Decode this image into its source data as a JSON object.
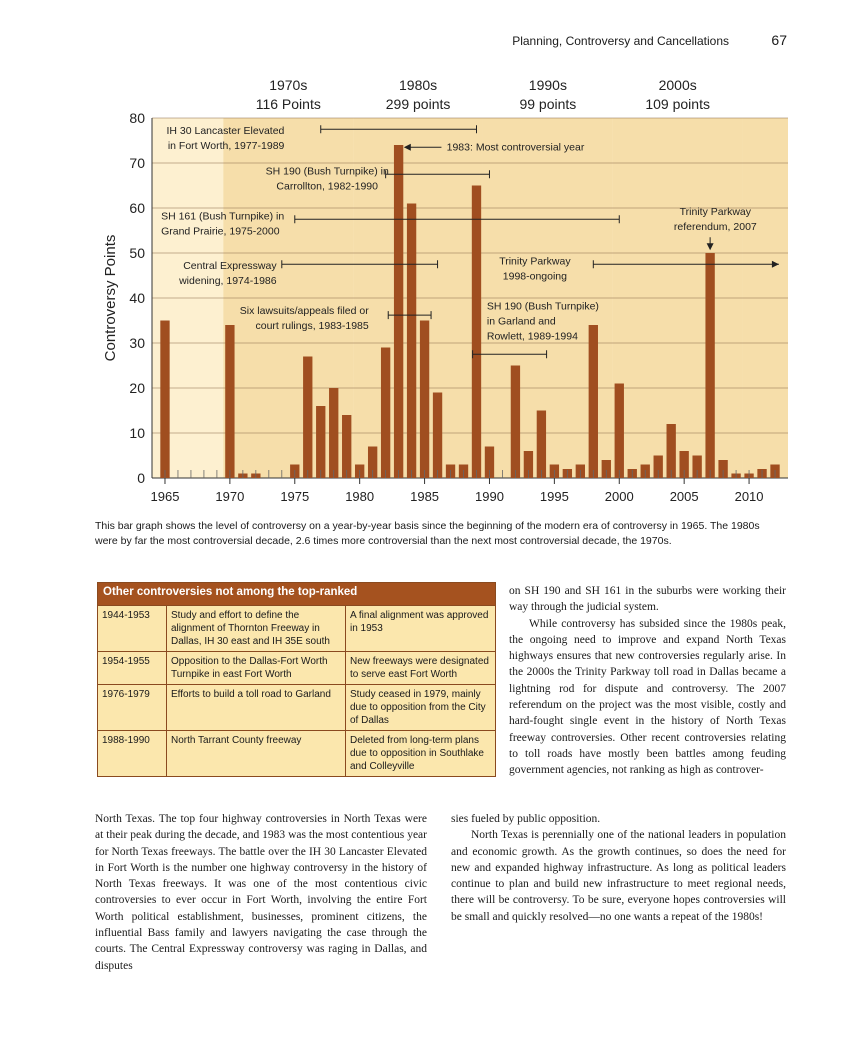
{
  "header": {
    "title": "Planning, Controversy and Cancellations",
    "page_number": "67"
  },
  "chart_data": {
    "type": "bar",
    "ylabel": "Controversy Points",
    "ylim": [
      0,
      80
    ],
    "yticks": [
      0,
      10,
      20,
      30,
      40,
      50,
      60,
      70,
      80
    ],
    "xlim": [
      1964,
      2013
    ],
    "xticks": [
      1965,
      1970,
      1975,
      1980,
      1985,
      1990,
      1995,
      2000,
      2005,
      2010
    ],
    "years": [
      1965,
      1966,
      1967,
      1968,
      1969,
      1970,
      1971,
      1972,
      1973,
      1974,
      1975,
      1976,
      1977,
      1978,
      1979,
      1980,
      1981,
      1982,
      1983,
      1984,
      1985,
      1986,
      1987,
      1988,
      1989,
      1990,
      1991,
      1992,
      1993,
      1994,
      1995,
      1996,
      1997,
      1998,
      1999,
      2000,
      2001,
      2002,
      2003,
      2004,
      2005,
      2006,
      2007,
      2008,
      2009,
      2010,
      2011,
      2012
    ],
    "values": [
      35,
      0,
      0,
      0,
      0,
      34,
      1,
      1,
      0,
      0,
      3,
      27,
      16,
      20,
      14,
      3,
      7,
      29,
      74,
      61,
      35,
      19,
      3,
      3,
      65,
      7,
      0,
      25,
      6,
      15,
      3,
      2,
      3,
      34,
      4,
      21,
      2,
      3,
      5,
      12,
      6,
      5,
      50,
      4,
      1,
      1,
      2,
      3
    ],
    "decades": [
      {
        "label": "1970s",
        "points": "116 Points",
        "start": 1969.5,
        "end": 1979.5
      },
      {
        "label": "1980s",
        "points": "299 points",
        "start": 1979.5,
        "end": 1989.5
      },
      {
        "label": "1990s",
        "points": "99 points",
        "start": 1989.5,
        "end": 1999.5
      },
      {
        "label": "2000s",
        "points": "109 points",
        "start": 1999.5,
        "end": 2009.5
      }
    ],
    "colors": {
      "bar": "#a04e20",
      "band_light": "#fdf0d0",
      "band_dark": "#f6deaa",
      "grid": "#8a6a4a",
      "text": "#222222"
    },
    "annotations": [
      {
        "lines": [
          "IH 30 Lancaster Elevated",
          "in Fort Worth, 1977-1989"
        ],
        "align": "end",
        "tx": 1974.2,
        "ty": 76.5,
        "range": [
          1977,
          1989
        ],
        "ry": 77.5
      },
      {
        "lines": [
          "1983: Most controversial year"
        ],
        "align": "start",
        "tx": 1986.7,
        "ty": 72.8,
        "arrow_left_to": 1983.4,
        "arrow_from": 1986.3,
        "ay": 73.5
      },
      {
        "lines": [
          "SH 190 (Bush Turnpike) in",
          "Carrollton, 1982-1990"
        ],
        "align": "middle",
        "tx": 1977.5,
        "ty": 67.5,
        "range": [
          1982,
          1990
        ],
        "ry": 67.5
      },
      {
        "lines": [
          "SH 161 (Bush Turnpike) in",
          "Grand Prairie, 1975-2000"
        ],
        "align": "start",
        "tx": 1964.7,
        "ty": 57.5,
        "range": [
          1975,
          2000
        ],
        "ry": 57.5
      },
      {
        "lines": [
          "Trinity Parkway",
          "referendum, 2007"
        ],
        "align": "middle",
        "tx": 2007.4,
        "ty": 58.5,
        "down_arrow": 2007,
        "arrow_top": 53.5,
        "arrow_bottom": 50.6
      },
      {
        "lines": [
          "Central Expressway",
          "widening, 1974-1986"
        ],
        "align": "end",
        "tx": 1973.6,
        "ty": 46.5,
        "range": [
          1974,
          1986
        ],
        "ry": 47.5
      },
      {
        "lines": [
          "Trinity Parkway",
          "1998-ongoing"
        ],
        "align": "middle",
        "tx": 1993.5,
        "ty": 47.5,
        "range_arrow": [
          1998,
          2012.3
        ],
        "ry": 47.5
      },
      {
        "lines": [
          "Six lawsuits/appeals filed or",
          "court rulings, 1983-1985"
        ],
        "align": "end",
        "tx": 1980.7,
        "ty": 36.5,
        "range": [
          1982.2,
          1985.5
        ],
        "ry": 36.2
      },
      {
        "lines": [
          "SH 190 (Bush Turnpike)",
          "in Garland and",
          "Rowlett, 1989-1994"
        ],
        "align": "start",
        "tx": 1989.8,
        "ty": 37.5,
        "range": [
          1988.7,
          1994.4
        ],
        "ry": 27.5
      }
    ]
  },
  "caption": "This bar graph shows the level of controversy on a year-by-year basis since the beginning of the modern era of controversy in 1965. The 1980s were by far the most controversial decade, 2.6 times more controversial than the next most controversial decade, the 1970s.",
  "table": {
    "title": "Other controversies not among the top-ranked",
    "rows": [
      {
        "years": "1944-1953",
        "desc": "Study and effort to define the alignment of Thornton Freeway in Dallas, IH 30 east and IH 35E south",
        "outcome": "A final alignment was approved in 1953"
      },
      {
        "years": "1954-1955",
        "desc": "Opposition to the Dallas-Fort Worth Turnpike in east Fort Worth",
        "outcome": "New freeways were designated to serve east Fort Worth"
      },
      {
        "years": "1976-1979",
        "desc": "Efforts to build a toll road to Garland",
        "outcome": "Study ceased in 1979, mainly due to opposition from the City of Dallas"
      },
      {
        "years": "1988-1990",
        "desc": "North Tarrant County freeway",
        "outcome": "Deleted from long-term plans due to opposition in Southlake and Colleyville"
      }
    ]
  },
  "text": {
    "right_top_p1": "on SH 190 and SH 161 in the suburbs were working their way through the judicial system.",
    "right_top_p2": "While controversy has subsided since the 1980s peak, the ongoing need to improve and expand North Texas highways ensures that new controversies regularly arise. In the 2000s the Trinity Parkway toll road in Dallas became a lightning rod for dispute and controversy. The 2007 referendum on the project was the most visible, costly and hard-fought single event in the history of North Texas freeway controversies. Other recent controversies relating to toll roads have mostly been battles among feuding government agencies, not ranking as high as controver-",
    "left_bottom": "North Texas. The top four highway controversies in North Texas were at their peak during the decade, and 1983 was the most contentious year for North Texas freeways. The battle over the IH 30 Lancaster Elevated in Fort Worth is the number one highway controversy in the history of North Texas freeways. It was one of the most contentious civic controversies to ever occur in Fort Worth, involving the entire Fort Worth political establishment, businesses, prominent citizens, the influential Bass family and lawyers navigating the case through the courts. The Central Expressway controversy was raging in Dallas, and disputes",
    "mid_bottom_p1": "sies fueled by public opposition.",
    "mid_bottom_p2": "North Texas is perennially one of the national leaders in population and economic growth. As the growth continues, so does the need for new and expanded highway infrastructure. As long as political leaders continue to plan and build new infrastructure to meet regional needs, there will be controversy. To be sure, everyone hopes controversies will be small and quickly resolved—no one wants a repeat of the 1980s!"
  }
}
